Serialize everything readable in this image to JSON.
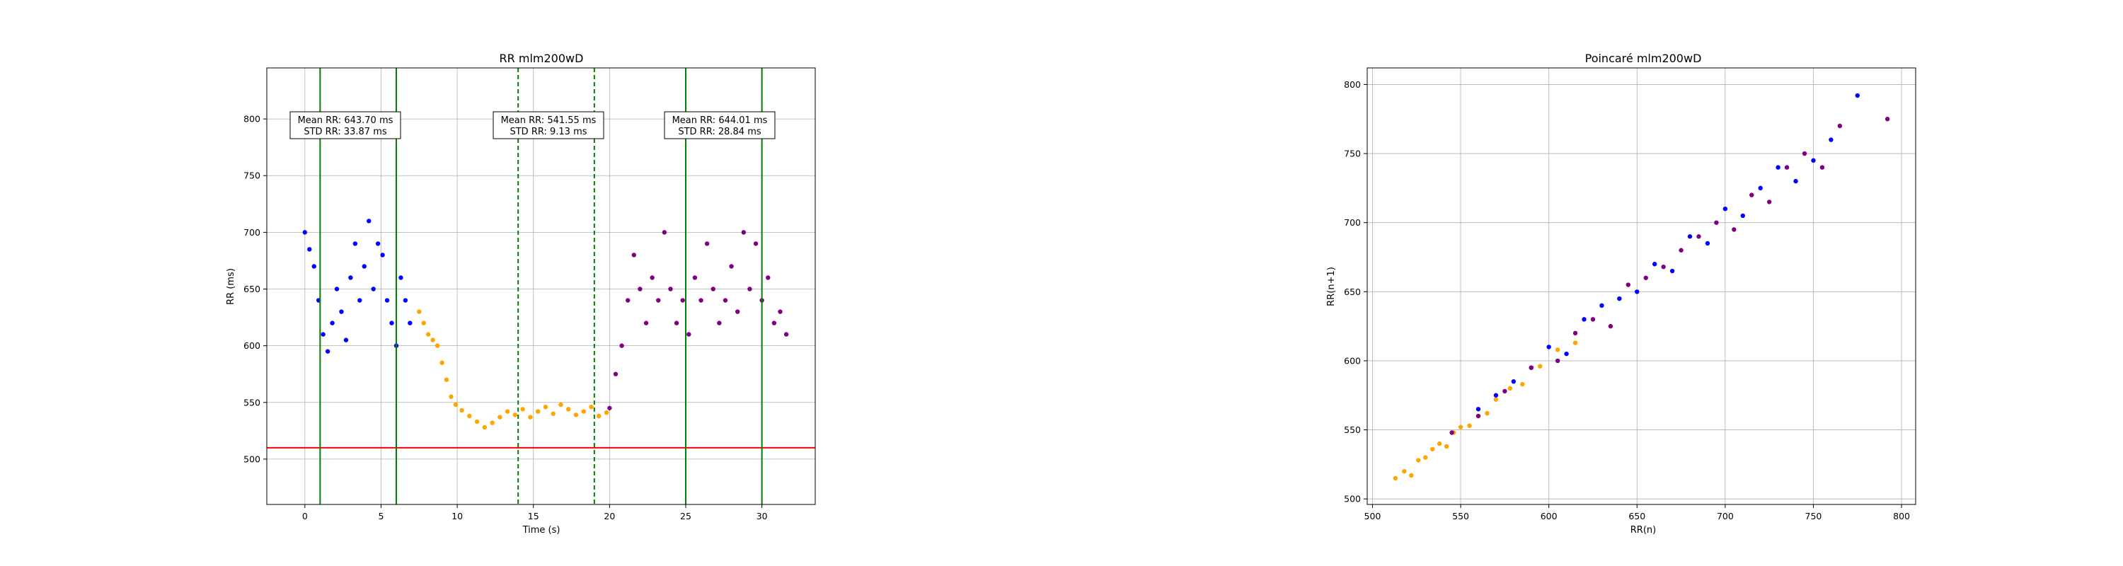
{
  "chart_data": [
    {
      "type": "scatter",
      "title": "RR mlm200wD",
      "xlabel": "Time (s)",
      "ylabel": "RR (ms)",
      "xlim": [
        -2.5,
        33.5
      ],
      "ylim": [
        460,
        845
      ],
      "xticks": [
        0,
        5,
        10,
        15,
        20,
        25,
        30
      ],
      "yticks": [
        500,
        550,
        600,
        650,
        700,
        750,
        800
      ],
      "grid": true,
      "colors": {
        "baseline": "#0000ff",
        "task": "#ffa500",
        "recovery": "#800080",
        "green": "#008000",
        "threshold": "#ff0000"
      },
      "threshold_line": {
        "y": 510,
        "color": "#ff0000"
      },
      "vertical_lines": [
        {
          "x": 1,
          "style": "solid"
        },
        {
          "x": 6,
          "style": "solid"
        },
        {
          "x": 14,
          "style": "dashed"
        },
        {
          "x": 19,
          "style": "dashed"
        },
        {
          "x": 25,
          "style": "solid"
        },
        {
          "x": 30,
          "style": "solid"
        }
      ],
      "annotations": [
        {
          "x": 3.5,
          "y": 790,
          "line1": "Mean RR: 643.70 ms",
          "line2": "STD RR: 33.87 ms"
        },
        {
          "x": 16.5,
          "y": 790,
          "line1": "Mean RR: 541.55 ms",
          "line2": "STD RR: 9.13 ms"
        },
        {
          "x": 27.5,
          "y": 790,
          "line1": "Mean RR: 644.01 ms",
          "line2": "STD RR: 28.84 ms"
        }
      ],
      "series": [
        {
          "color": "#0000ff",
          "x": [
            0.0,
            0.3,
            0.6,
            0.9,
            1.2,
            1.5,
            1.8,
            2.1,
            2.4,
            2.7,
            3.0,
            3.3,
            3.6,
            3.9,
            4.2,
            4.5,
            4.8,
            5.1,
            5.4,
            5.7,
            6.0,
            6.3,
            6.6,
            6.9
          ],
          "y": [
            700,
            685,
            670,
            640,
            610,
            595,
            620,
            650,
            630,
            605,
            660,
            690,
            640,
            670,
            710,
            650,
            690,
            680,
            640,
            620,
            600,
            660,
            640,
            620
          ]
        },
        {
          "color": "#ffa500",
          "x": [
            7.5,
            7.8,
            8.1,
            8.4,
            8.7,
            9.0,
            9.3,
            9.6,
            9.9,
            10.3,
            10.8,
            11.3,
            11.8,
            12.3,
            12.8,
            13.3,
            13.8,
            14.3,
            14.8,
            15.3,
            15.8,
            16.3,
            16.8,
            17.3,
            17.8,
            18.3,
            18.8,
            19.3,
            19.8
          ],
          "y": [
            630,
            620,
            610,
            605,
            600,
            585,
            570,
            555,
            548,
            543,
            538,
            533,
            528,
            532,
            537,
            542,
            539,
            544,
            537,
            542,
            546,
            540,
            548,
            544,
            539,
            542,
            546,
            538,
            541
          ]
        },
        {
          "color": "#800080",
          "x": [
            20.0,
            20.4,
            20.8,
            21.2,
            21.6,
            22.0,
            22.4,
            22.8,
            23.2,
            23.6,
            24.0,
            24.4,
            24.8,
            25.2,
            25.6,
            26.0,
            26.4,
            26.8,
            27.2,
            27.6,
            28.0,
            28.4,
            28.8,
            29.2,
            29.6,
            30.0,
            30.4,
            30.8,
            31.2,
            31.6
          ],
          "y": [
            545,
            575,
            600,
            640,
            680,
            650,
            620,
            660,
            640,
            700,
            650,
            620,
            640,
            610,
            660,
            640,
            690,
            650,
            620,
            640,
            670,
            630,
            700,
            650,
            690,
            640,
            660,
            620,
            630,
            610
          ]
        }
      ]
    },
    {
      "type": "scatter",
      "title": "Poincaré mlm200wD",
      "xlabel": "RR(n)",
      "ylabel": "RR(n+1)",
      "xlim": [
        497,
        808
      ],
      "ylim": [
        496,
        812
      ],
      "xticks": [
        500,
        550,
        600,
        650,
        700,
        750,
        800
      ],
      "yticks": [
        500,
        550,
        600,
        650,
        700,
        750,
        800
      ],
      "grid": true,
      "series": [
        {
          "color": "#ffa500",
          "x": [
            513,
            518,
            522,
            526,
            530,
            534,
            538,
            542,
            546,
            550,
            555,
            560,
            565,
            570,
            578,
            585,
            595,
            605,
            615
          ],
          "y": [
            515,
            520,
            517,
            528,
            530,
            536,
            540,
            538,
            548,
            552,
            553,
            560,
            562,
            572,
            580,
            583,
            596,
            608,
            613
          ]
        },
        {
          "color": "#0000ff",
          "x": [
            560,
            570,
            580,
            590,
            600,
            610,
            620,
            630,
            640,
            650,
            660,
            670,
            680,
            690,
            700,
            710,
            720,
            730,
            740,
            750,
            760,
            775
          ],
          "y": [
            565,
            575,
            585,
            595,
            610,
            605,
            630,
            640,
            645,
            650,
            670,
            665,
            690,
            685,
            710,
            705,
            725,
            740,
            730,
            745,
            760,
            792
          ]
        },
        {
          "color": "#800080",
          "x": [
            545,
            560,
            575,
            590,
            605,
            615,
            625,
            635,
            645,
            655,
            665,
            675,
            685,
            695,
            705,
            715,
            725,
            735,
            745,
            755,
            765,
            792
          ],
          "y": [
            548,
            560,
            578,
            595,
            600,
            620,
            630,
            625,
            655,
            660,
            668,
            680,
            690,
            700,
            695,
            720,
            715,
            740,
            750,
            740,
            770,
            775
          ]
        }
      ]
    }
  ]
}
